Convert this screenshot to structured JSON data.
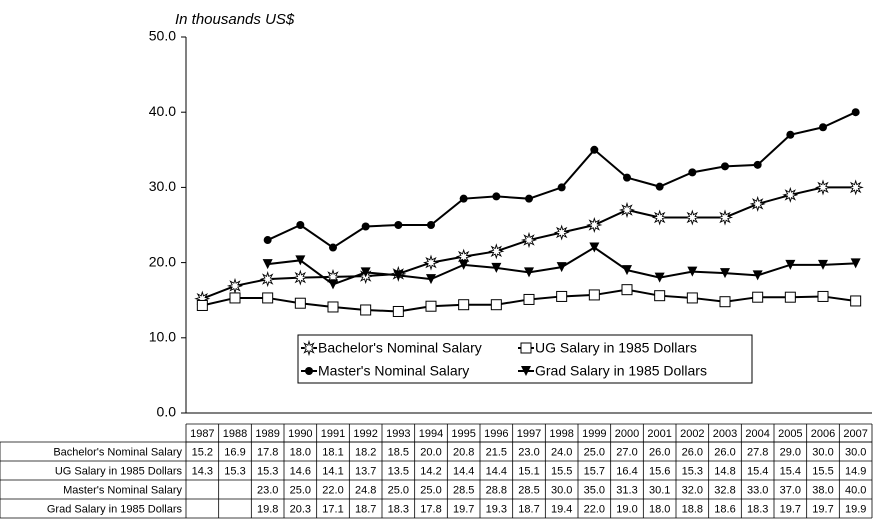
{
  "chart_data": {
    "type": "line",
    "title": "In thousands US$",
    "categories": [
      "1987",
      "1988",
      "1989",
      "1990",
      "1991",
      "1992",
      "1993",
      "1994",
      "1995",
      "1996",
      "1997",
      "1998",
      "1999",
      "2000",
      "2001",
      "2002",
      "2003",
      "2004",
      "2005",
      "2006",
      "2007"
    ],
    "series": [
      {
        "name": "Bachelor's Nominal Salary",
        "color": "#000000",
        "marker": "star",
        "values": [
          15.2,
          16.9,
          17.8,
          18.0,
          18.1,
          18.2,
          18.5,
          20.0,
          20.8,
          21.5,
          23.0,
          24.0,
          25.0,
          27.0,
          26.0,
          26.0,
          26.0,
          27.8,
          29.0,
          30.0,
          30.0
        ],
        "value_labels": [
          "15.2",
          "16.9",
          "17.8",
          "18.0",
          "18.1",
          "18.2",
          "18.5",
          "20.0",
          "20.8",
          "21.5",
          "23.0",
          "24.0",
          "25.0",
          "27.0",
          "26.0",
          "26.0",
          "26.0",
          "27.8",
          "29.0",
          "30.0",
          "30.0"
        ]
      },
      {
        "name": "UG Salary in 1985 Dollars",
        "color": "#000000",
        "marker": "square",
        "values": [
          14.3,
          15.3,
          15.3,
          14.6,
          14.1,
          13.7,
          13.5,
          14.2,
          14.4,
          14.4,
          15.1,
          15.5,
          15.7,
          16.4,
          15.6,
          15.3,
          14.8,
          15.4,
          15.4,
          15.5,
          14.9
        ],
        "value_labels": [
          "14.3",
          "15.3",
          "15.3",
          "14.6",
          "14.1",
          "13.7",
          "13.5",
          "14.2",
          "14.4",
          "14.4",
          "15.1",
          "15.5",
          "15.7",
          "16.4",
          "15.6",
          "15.3",
          "14.8",
          "15.4",
          "15.4",
          "15.5",
          "14.9"
        ]
      },
      {
        "name": "Master's Nominal Salary",
        "color": "#000000",
        "marker": "circle",
        "values": [
          null,
          null,
          23.0,
          25.0,
          22.0,
          24.8,
          25.0,
          25.0,
          28.5,
          28.8,
          28.5,
          30.0,
          35.0,
          31.3,
          30.1,
          32.0,
          32.8,
          33.0,
          37.0,
          38.0,
          40.0
        ],
        "value_labels": [
          null,
          null,
          "23.0",
          "25.0",
          "22.0",
          "24.8",
          "25.0",
          "25.0",
          "28.5",
          "28.8",
          "28.5",
          "30.0",
          "35.0",
          "31.3",
          "30.1",
          "32.0",
          "32.8",
          "33.0",
          "37.0",
          "38.0",
          "40.0"
        ]
      },
      {
        "name": "Grad Salary in 1985 Dollars",
        "color": "#000000",
        "marker": "triangle-down",
        "values": [
          null,
          null,
          19.8,
          20.3,
          17.1,
          18.7,
          18.3,
          17.8,
          19.7,
          19.3,
          18.7,
          19.4,
          22.0,
          19.0,
          18.0,
          18.8,
          18.6,
          18.3,
          19.7,
          19.7,
          19.9
        ],
        "value_labels": [
          null,
          null,
          "19.8",
          "20.3",
          "17.1",
          "18.7",
          "18.3",
          "17.8",
          "19.7",
          "19.3",
          "18.7",
          "19.4",
          "22.0",
          "19.0",
          "18.0",
          "18.8",
          "18.6",
          "18.3",
          "19.7",
          "19.7",
          "19.9"
        ]
      }
    ],
    "ylim": [
      0,
      50
    ],
    "yticks": [
      {
        "value": 0,
        "label": "0.0"
      },
      {
        "value": 10,
        "label": "10.0"
      },
      {
        "value": 20,
        "label": "20.0"
      },
      {
        "value": 30,
        "label": "30.0"
      },
      {
        "value": 40,
        "label": "40.0"
      },
      {
        "value": 50,
        "label": "50.0"
      }
    ],
    "grid": false,
    "legend": "inside-bottom"
  }
}
